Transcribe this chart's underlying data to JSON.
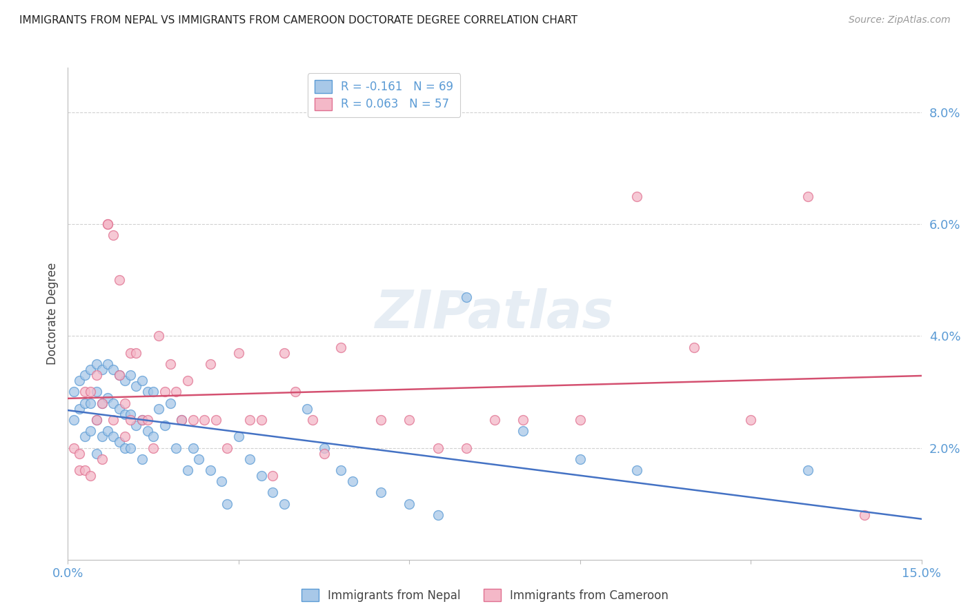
{
  "title": "IMMIGRANTS FROM NEPAL VS IMMIGRANTS FROM CAMEROON DOCTORATE DEGREE CORRELATION CHART",
  "source": "Source: ZipAtlas.com",
  "ylabel": "Doctorate Degree",
  "xlim": [
    0.0,
    0.15
  ],
  "ylim": [
    0.0,
    0.088
  ],
  "nepal_R": -0.161,
  "nepal_N": 69,
  "cameroon_R": 0.063,
  "cameroon_N": 57,
  "nepal_color": "#a8c8e8",
  "cameroon_color": "#f4b8c8",
  "nepal_edge_color": "#5b9bd5",
  "cameroon_edge_color": "#e07090",
  "nepal_line_color": "#4472c4",
  "cameroon_line_color": "#d45070",
  "background_color": "#ffffff",
  "grid_color": "#d0d0d0",
  "title_color": "#222222",
  "axis_label_color": "#444444",
  "tick_label_color": "#5b9bd5",
  "watermark": "ZIPatlas",
  "nepal_x": [
    0.001,
    0.001,
    0.002,
    0.002,
    0.003,
    0.003,
    0.003,
    0.004,
    0.004,
    0.004,
    0.005,
    0.005,
    0.005,
    0.005,
    0.006,
    0.006,
    0.006,
    0.007,
    0.007,
    0.007,
    0.008,
    0.008,
    0.008,
    0.009,
    0.009,
    0.009,
    0.01,
    0.01,
    0.01,
    0.011,
    0.011,
    0.011,
    0.012,
    0.012,
    0.013,
    0.013,
    0.013,
    0.014,
    0.014,
    0.015,
    0.015,
    0.016,
    0.017,
    0.018,
    0.019,
    0.02,
    0.021,
    0.022,
    0.023,
    0.025,
    0.027,
    0.028,
    0.03,
    0.032,
    0.034,
    0.036,
    0.038,
    0.042,
    0.045,
    0.048,
    0.05,
    0.055,
    0.06,
    0.065,
    0.07,
    0.08,
    0.09,
    0.1,
    0.13
  ],
  "nepal_y": [
    0.03,
    0.025,
    0.032,
    0.027,
    0.033,
    0.028,
    0.022,
    0.034,
    0.028,
    0.023,
    0.035,
    0.03,
    0.025,
    0.019,
    0.034,
    0.028,
    0.022,
    0.035,
    0.029,
    0.023,
    0.034,
    0.028,
    0.022,
    0.033,
    0.027,
    0.021,
    0.032,
    0.026,
    0.02,
    0.033,
    0.026,
    0.02,
    0.031,
    0.024,
    0.032,
    0.025,
    0.018,
    0.03,
    0.023,
    0.03,
    0.022,
    0.027,
    0.024,
    0.028,
    0.02,
    0.025,
    0.016,
    0.02,
    0.018,
    0.016,
    0.014,
    0.01,
    0.022,
    0.018,
    0.015,
    0.012,
    0.01,
    0.027,
    0.02,
    0.016,
    0.014,
    0.012,
    0.01,
    0.008,
    0.047,
    0.023,
    0.018,
    0.016,
    0.016
  ],
  "cameroon_x": [
    0.001,
    0.002,
    0.002,
    0.003,
    0.003,
    0.004,
    0.004,
    0.005,
    0.005,
    0.006,
    0.006,
    0.007,
    0.007,
    0.008,
    0.008,
    0.009,
    0.009,
    0.01,
    0.01,
    0.011,
    0.011,
    0.012,
    0.013,
    0.014,
    0.015,
    0.016,
    0.017,
    0.018,
    0.019,
    0.02,
    0.021,
    0.022,
    0.024,
    0.025,
    0.026,
    0.028,
    0.03,
    0.032,
    0.034,
    0.036,
    0.038,
    0.04,
    0.043,
    0.045,
    0.048,
    0.055,
    0.06,
    0.065,
    0.07,
    0.075,
    0.08,
    0.09,
    0.1,
    0.11,
    0.12,
    0.13,
    0.14
  ],
  "cameroon_y": [
    0.02,
    0.019,
    0.016,
    0.03,
    0.016,
    0.03,
    0.015,
    0.033,
    0.025,
    0.028,
    0.018,
    0.06,
    0.06,
    0.058,
    0.025,
    0.05,
    0.033,
    0.028,
    0.022,
    0.037,
    0.025,
    0.037,
    0.025,
    0.025,
    0.02,
    0.04,
    0.03,
    0.035,
    0.03,
    0.025,
    0.032,
    0.025,
    0.025,
    0.035,
    0.025,
    0.02,
    0.037,
    0.025,
    0.025,
    0.015,
    0.037,
    0.03,
    0.025,
    0.019,
    0.038,
    0.025,
    0.025,
    0.02,
    0.02,
    0.025,
    0.025,
    0.025,
    0.065,
    0.038,
    0.025,
    0.065,
    0.008
  ],
  "legend_nepal_label": "Immigrants from Nepal",
  "legend_cameroon_label": "Immigrants from Cameroon"
}
